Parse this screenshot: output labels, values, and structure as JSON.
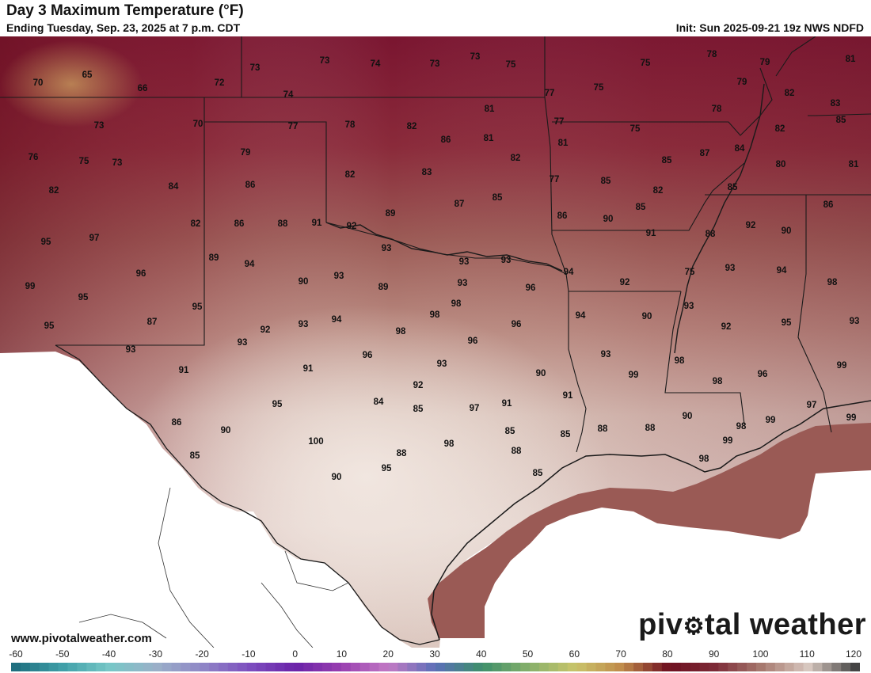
{
  "header": {
    "title": "Day 3 Maximum Temperature (°F)",
    "subtitle": "Ending Tuesday, Sep. 23, 2025 at 7 p.m. CDT",
    "init": "Init: Sun 2025-09-21 19z NWS NDFD"
  },
  "footer": {
    "site": "www.pivotalweather.com",
    "brand_left": "piv",
    "brand_right": "tal weather"
  },
  "legend": {
    "ticks": [
      "-60",
      "-50",
      "-40",
      "-30",
      "-20",
      "-10",
      "0",
      "10",
      "20",
      "30",
      "40",
      "50",
      "60",
      "70",
      "80",
      "90",
      "100",
      "110",
      "120"
    ],
    "colors": [
      "#1f6f7f",
      "#3f9fa8",
      "#77c7c7",
      "#9ab0c8",
      "#8f86c6",
      "#7d4fbf",
      "#6a22a8",
      "#9a3fb0",
      "#c27ac4",
      "#5a6fb8",
      "#3d8f6a",
      "#86b06a",
      "#c9c46a",
      "#bf8a4a",
      "#6e0f1f",
      "#7d2a37",
      "#a77a6f",
      "#d8c8c0",
      "#444444"
    ]
  },
  "map": {
    "temperatures": [
      "65",
      "66",
      "70",
      "72",
      "73",
      "73",
      "74",
      "73",
      "73",
      "75",
      "75",
      "78",
      "79",
      "81",
      "74",
      "77",
      "75",
      "79",
      "82",
      "83",
      "73",
      "70",
      "77",
      "78",
      "82",
      "81",
      "77",
      "75",
      "78",
      "82",
      "85",
      "76",
      "75",
      "73",
      "79",
      "86",
      "82",
      "81",
      "77",
      "81",
      "85",
      "87",
      "84",
      "80",
      "81",
      "82",
      "84",
      "86",
      "82",
      "83",
      "85",
      "82",
      "85",
      "85",
      "82",
      "86",
      "88",
      "91",
      "92",
      "89",
      "87",
      "85",
      "86",
      "90",
      "91",
      "88",
      "92",
      "90",
      "86",
      "89",
      "94",
      "93",
      "93",
      "93",
      "94",
      "92",
      "75",
      "93",
      "94",
      "98",
      "95",
      "97",
      "93",
      "90",
      "89",
      "93",
      "98",
      "96",
      "99",
      "95",
      "96",
      "95",
      "92",
      "93",
      "94",
      "98",
      "98",
      "96",
      "96",
      "94",
      "90",
      "93",
      "92",
      "95",
      "93",
      "87",
      "93",
      "93",
      "99",
      "98",
      "98",
      "96",
      "99",
      "95",
      "93",
      "91",
      "91",
      "96",
      "93",
      "90",
      "91",
      "97",
      "99",
      "92",
      "97",
      "91",
      "88",
      "88",
      "90",
      "99",
      "98",
      "99",
      "95",
      "90",
      "86",
      "85",
      "84",
      "98",
      "85",
      "85",
      "88",
      "85",
      "100",
      "88",
      "95",
      "85",
      "98",
      "90"
    ]
  }
}
